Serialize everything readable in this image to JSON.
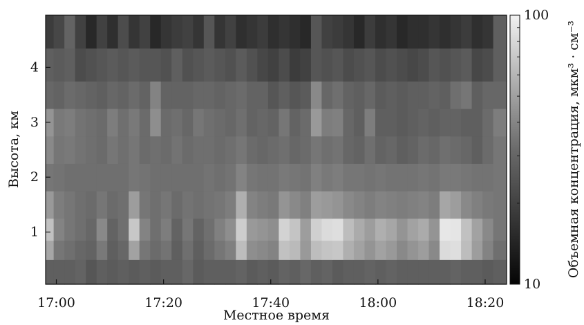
{
  "chart_data": {
    "type": "heatmap",
    "xlabel": "Местное время",
    "ylabel": "Высота, км",
    "colorbar_label": "Объемная концентрация, мкм³ · см⁻³",
    "x_ticks": [
      "17:00",
      "17:20",
      "17:40",
      "18:00",
      "18:20"
    ],
    "y_ticks": [
      "1",
      "2",
      "3",
      "4"
    ],
    "colorbar_ticks": [
      "10",
      "100"
    ],
    "xlim": [
      "16:58",
      "18:24"
    ],
    "ylim": [
      0.05,
      4.95
    ],
    "colorbar_range": [
      10,
      100
    ],
    "colorbar_scale": "log",
    "colormap": "grayscale",
    "grid": false,
    "colorbar_position": "right",
    "z_unit": "мкм³ · см⁻³",
    "cells": {
      "x_minutes_from_1700": [
        -1.5,
        0.5,
        2.5,
        4.5,
        6.5,
        8.5,
        10.5,
        12.5,
        14.5,
        16.5,
        18.5,
        20.5,
        22.5,
        24.5,
        26.5,
        28.5,
        30.5,
        32.5,
        34.5,
        36.5,
        38.5,
        40.5,
        42.5,
        44.5,
        46.5,
        48.5,
        50.5,
        52.5,
        54.5,
        56.5,
        58.5,
        60.5,
        62.5,
        64.5,
        66.5,
        68.5,
        70.5,
        72.5,
        74.5,
        76.5,
        78.5,
        80.5,
        82.5
      ],
      "y_km": [
        0.3,
        0.7,
        1.0,
        1.5,
        2.0,
        2.5,
        3.0,
        3.5,
        4.0,
        4.7
      ],
      "z": [
        [
          24,
          24,
          24,
          25,
          22,
          24,
          23,
          24,
          23,
          24,
          23,
          24,
          24,
          26,
          23,
          24,
          24,
          24,
          25,
          23,
          24,
          23,
          25,
          24,
          26,
          24,
          25,
          23,
          24,
          24,
          25,
          24,
          25,
          24,
          24,
          24,
          24,
          24,
          25,
          24,
          24,
          23,
          24
        ],
        [
          48,
          30,
          28,
          26,
          25,
          31,
          24,
          26,
          46,
          30,
          27,
          29,
          24,
          28,
          24,
          27,
          30,
          33,
          60,
          38,
          36,
          34,
          62,
          58,
          42,
          60,
          64,
          66,
          52,
          46,
          40,
          46,
          42,
          36,
          40,
          44,
          36,
          80,
          82,
          60,
          44,
          34,
          28
        ],
        [
          62,
          34,
          30,
          28,
          26,
          36,
          25,
          28,
          66,
          34,
          28,
          32,
          25,
          30,
          25,
          28,
          33,
          38,
          70,
          42,
          40,
          38,
          74,
          64,
          44,
          72,
          80,
          82,
          60,
          50,
          44,
          52,
          48,
          40,
          46,
          50,
          40,
          90,
          88,
          62,
          46,
          36,
          30
        ],
        [
          42,
          32,
          30,
          28,
          27,
          30,
          27,
          28,
          44,
          30,
          28,
          30,
          27,
          29,
          28,
          29,
          30,
          32,
          52,
          34,
          32,
          31,
          40,
          36,
          33,
          44,
          42,
          40,
          36,
          34,
          32,
          34,
          33,
          32,
          33,
          34,
          32,
          48,
          44,
          36,
          33,
          31,
          30
        ],
        [
          30,
          29,
          28,
          28,
          28,
          28,
          28,
          28,
          30,
          29,
          28,
          28,
          28,
          28,
          28,
          29,
          28,
          29,
          34,
          30,
          29,
          29,
          31,
          30,
          29,
          33,
          31,
          32,
          30,
          30,
          29,
          30,
          29,
          29,
          29,
          30,
          29,
          31,
          31,
          30,
          29,
          29,
          30
        ],
        [
          36,
          30,
          31,
          29,
          28,
          27,
          30,
          28,
          30,
          27,
          28,
          27,
          29,
          27,
          28,
          28,
          27,
          28,
          30,
          27,
          26,
          27,
          28,
          26,
          27,
          30,
          28,
          29,
          26,
          25,
          28,
          25,
          26,
          24,
          25,
          27,
          26,
          28,
          27,
          26,
          24,
          27,
          30
        ],
        [
          40,
          31,
          32,
          29,
          28,
          27,
          32,
          28,
          31,
          27,
          38,
          27,
          28,
          26,
          30,
          28,
          27,
          26,
          28,
          25,
          26,
          25,
          30,
          25,
          27,
          42,
          32,
          33,
          26,
          24,
          32,
          24,
          24,
          23,
          24,
          25,
          24,
          25,
          25,
          24,
          24,
          27,
          32
        ],
        [
          26,
          25,
          27,
          26,
          25,
          24,
          26,
          25,
          27,
          25,
          34,
          25,
          25,
          25,
          26,
          26,
          25,
          26,
          27,
          25,
          25,
          22,
          24,
          22,
          23,
          36,
          26,
          28,
          25,
          24,
          26,
          23,
          24,
          23,
          24,
          24,
          25,
          24,
          28,
          30,
          24,
          26,
          26
        ],
        [
          24,
          23,
          24,
          20,
          21,
          22,
          23,
          22,
          23,
          22,
          22,
          21,
          24,
          21,
          22,
          23,
          22,
          21,
          23,
          21,
          19,
          18,
          20,
          17,
          18,
          22,
          21,
          22,
          20,
          21,
          22,
          20,
          21,
          20,
          19,
          20,
          22,
          21,
          22,
          23,
          19,
          20,
          24
        ],
        [
          17,
          19,
          25,
          18,
          14,
          18,
          15,
          20,
          16,
          18,
          14,
          16,
          17,
          18,
          16,
          22,
          16,
          18,
          15,
          16,
          17,
          15,
          16,
          15,
          14,
          22,
          18,
          17,
          16,
          14,
          17,
          15,
          16,
          14,
          15,
          15,
          16,
          15,
          16,
          17,
          15,
          16,
          24
        ]
      ]
    }
  }
}
